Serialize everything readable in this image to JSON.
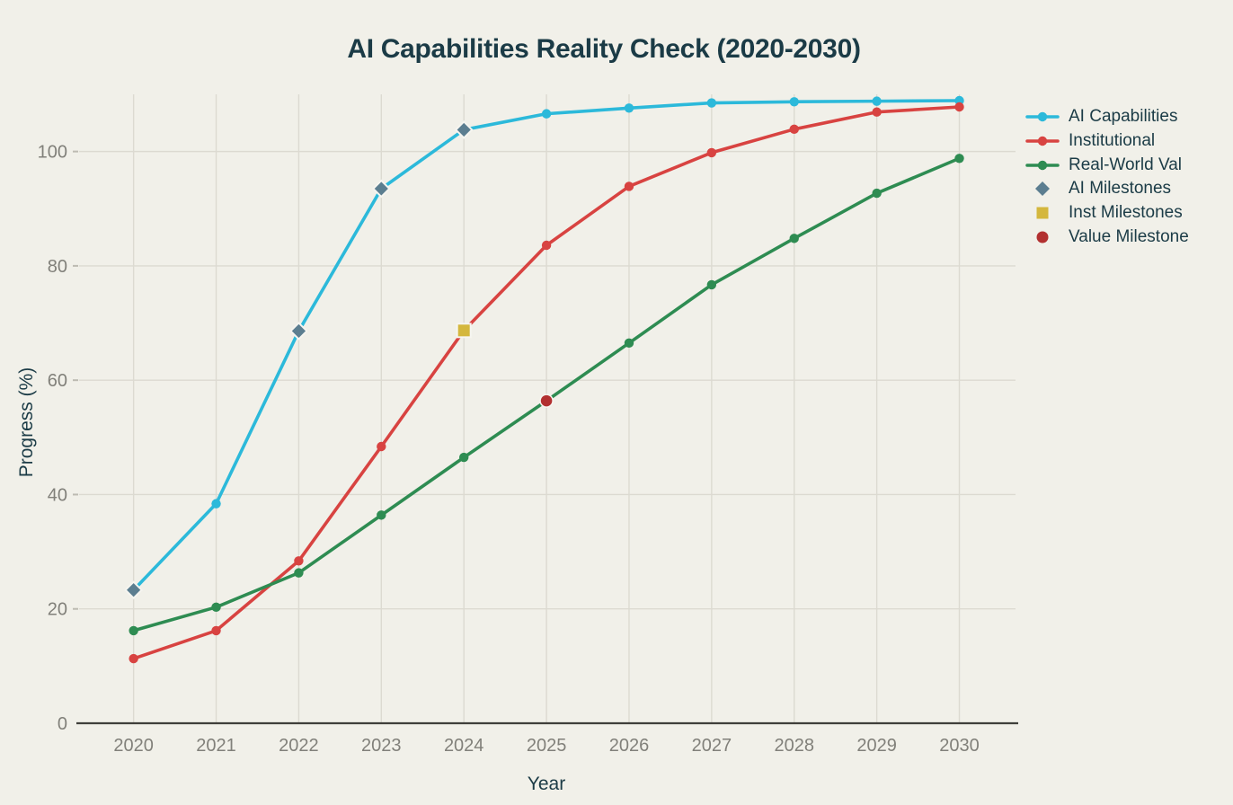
{
  "chart_data": {
    "type": "line",
    "title": "AI Capabilities Reality Check (2020-2030)",
    "xlabel": "Year",
    "ylabel": "Progress (%)",
    "x": [
      2020,
      2021,
      2022,
      2023,
      2024,
      2025,
      2026,
      2027,
      2028,
      2029,
      2030
    ],
    "yticks": [
      0,
      20,
      40,
      60,
      80,
      100
    ],
    "xlim": [
      2019.34,
      2030.68
    ],
    "ylim": [
      0,
      110
    ],
    "grid": true,
    "legend_position": "right",
    "series": [
      {
        "name": "AI Capabilities",
        "color": "#2cb9da",
        "marker": "circle",
        "values": [
          23.3,
          38.4,
          68.6,
          93.5,
          103.8,
          106.6,
          107.6,
          108.5,
          108.7,
          108.8,
          108.9
        ]
      },
      {
        "name": "Institutional",
        "color": "#d84341",
        "marker": "circle",
        "values": [
          11.3,
          16.2,
          28.4,
          48.4,
          68.7,
          83.6,
          93.9,
          99.8,
          103.9,
          106.9,
          107.8
        ]
      },
      {
        "name": "Real-World Val",
        "color": "#2e8c52",
        "marker": "circle",
        "values": [
          16.2,
          20.3,
          26.3,
          36.4,
          46.5,
          56.4,
          66.5,
          76.7,
          84.8,
          92.7,
          98.8
        ]
      }
    ],
    "milestones": [
      {
        "name": "AI Milestones",
        "color": "#5c7e90",
        "marker": "diamond",
        "points": [
          {
            "x": 2020,
            "y": 23.3
          },
          {
            "x": 2022,
            "y": 68.6
          },
          {
            "x": 2023,
            "y": 93.5
          },
          {
            "x": 2024,
            "y": 103.8
          }
        ]
      },
      {
        "name": "Inst Milestones",
        "color": "#d4b73d",
        "marker": "square",
        "points": [
          {
            "x": 2024,
            "y": 68.7
          }
        ]
      },
      {
        "name": "Value Milestone",
        "color": "#b23030",
        "marker": "circle-large",
        "points": [
          {
            "x": 2025,
            "y": 56.4
          }
        ]
      }
    ]
  },
  "colors": {
    "background": "#f1f0e9",
    "heading": "#1b3b46",
    "tick": "#81807a",
    "grid": "#dcdad1",
    "spine": "#3f3f3b",
    "marker_edge": "#f6f5f0"
  }
}
